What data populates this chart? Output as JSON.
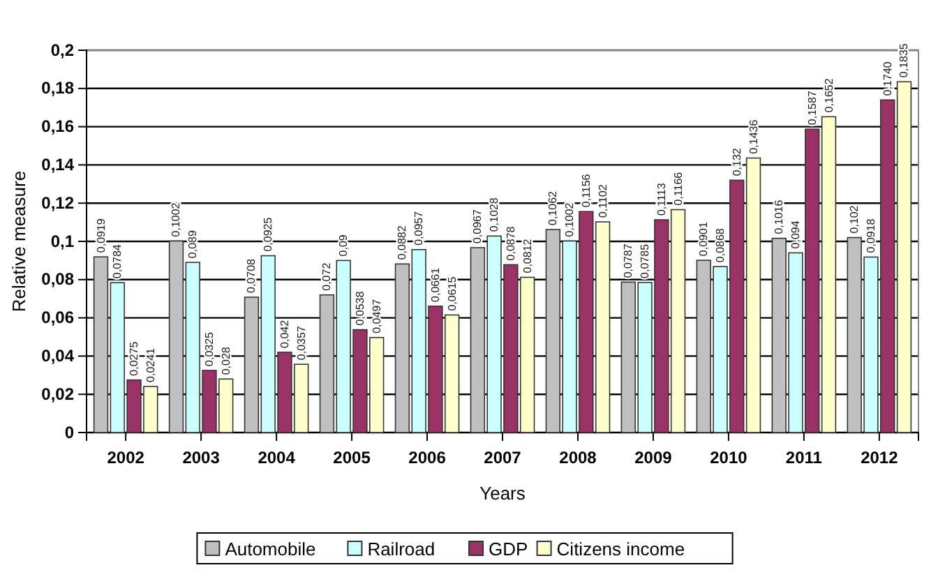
{
  "chart_data": {
    "type": "bar",
    "xlabel": "Years",
    "ylabel": "Relative measure",
    "categories": [
      "2002",
      "2003",
      "2004",
      "2005",
      "2006",
      "2007",
      "2008",
      "2009",
      "2010",
      "2011",
      "2012"
    ],
    "series": [
      {
        "name": "Automobile",
        "color": "#c0c0c0",
        "values": [
          0.0919,
          0.1002,
          0.0708,
          0.072,
          0.0882,
          0.0967,
          0.1062,
          0.0787,
          0.0901,
          0.1016,
          0.102
        ],
        "value_labels": [
          "0,0919",
          "0,1002",
          "0,0708",
          "0,072",
          "0,0882",
          "0,0967",
          "0,1062",
          "0,0787",
          "0,0901",
          "0,1016",
          "0,102"
        ]
      },
      {
        "name": "Railroad",
        "color": "#ccffff",
        "values": [
          0.0784,
          0.089,
          0.0925,
          0.09,
          0.0957,
          0.1028,
          0.1002,
          0.0785,
          0.0868,
          0.094,
          0.0918
        ],
        "value_labels": [
          "0,0784",
          "0,089",
          "0,0925",
          "0,09",
          "0,0957",
          "0,1028",
          "0,1002",
          "0,0785",
          "0,0868",
          "0,094",
          "0,0918"
        ]
      },
      {
        "name": "GDP",
        "color": "#993366",
        "values": [
          0.0275,
          0.0325,
          0.042,
          0.0538,
          0.0661,
          0.0878,
          0.1156,
          0.1113,
          0.132,
          0.1587,
          0.174
        ],
        "value_labels": [
          "0,0275",
          "0,0325",
          "0,042",
          "0,0538",
          "0,0661",
          "0,0878",
          "0,1156",
          "0,1113",
          "0,132",
          "0,1587",
          "0,1740"
        ]
      },
      {
        "name": "Citizens income",
        "color": "#ffffcc",
        "values": [
          0.0241,
          0.028,
          0.0357,
          0.0497,
          0.0615,
          0.0812,
          0.1102,
          0.1166,
          0.1436,
          0.1652,
          0.1835
        ],
        "value_labels": [
          "0,0241",
          "0,028",
          "0,0357",
          "0,0497",
          "0,0615",
          "0,0812",
          "0,1102",
          "0,1166",
          "0,1436",
          "0,1652",
          "0,1835"
        ]
      }
    ],
    "ylim": [
      0,
      0.2
    ],
    "yticks": [
      {
        "value": 0,
        "label": "0"
      },
      {
        "value": 0.02,
        "label": "0,02"
      },
      {
        "value": 0.04,
        "label": "0,04"
      },
      {
        "value": 0.06,
        "label": "0,06"
      },
      {
        "value": 0.08,
        "label": "0,08"
      },
      {
        "value": 0.1,
        "label": "0,1"
      },
      {
        "value": 0.12,
        "label": "0,12"
      },
      {
        "value": 0.14,
        "label": "0,14"
      },
      {
        "value": 0.16,
        "label": "0,16"
      },
      {
        "value": 0.18,
        "label": "0,18"
      },
      {
        "value": 0.2,
        "label": "0,2"
      }
    ],
    "grid": "y",
    "legend": "bottom"
  }
}
